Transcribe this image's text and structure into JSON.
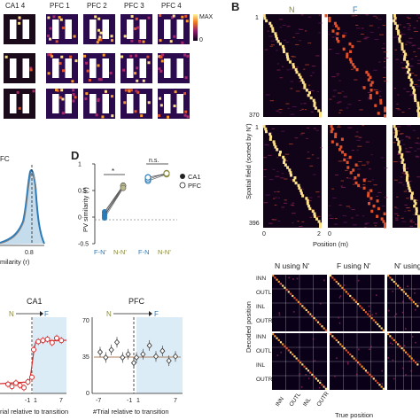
{
  "panel_a": {
    "columns": [
      "CA1 4",
      "PFC 1",
      "PFC 2",
      "PFC 3",
      "PFC 4"
    ],
    "colorbar_max": "MAX",
    "colorbar_min": "0"
  },
  "panel_b": {
    "letter": "B",
    "headers": [
      "N",
      "F"
    ],
    "ylabel": "Spatial field (sorted by N')",
    "top_ticks": [
      "1",
      "370"
    ],
    "bottom_ticks": [
      "1",
      "396"
    ],
    "x_ticks": [
      "0",
      "2",
      "0"
    ],
    "xlabel": "Position (m)",
    "colors": {
      "N": "#8a8a3a",
      "F": "#2a7bb8"
    }
  },
  "panel_c_fragment": {
    "label_fc": "FC",
    "tick_08": "0.8",
    "xlabel_fragment": "milarity (r)"
  },
  "panel_d": {
    "letter": "D",
    "ylabel": "PV similarity (r)",
    "y_ticks": [
      "1",
      "0.5",
      "0",
      "-0.5"
    ],
    "sig1": "*",
    "sig2": "n.s.",
    "x_cats": [
      "F-N'",
      "N-N'",
      "F-N",
      "N-N'"
    ],
    "legend": [
      "CA1",
      "PFC"
    ],
    "chart_data": {
      "type": "scatter",
      "title": "",
      "ylabel": "PV similarity (r)",
      "ylim": [
        -0.5,
        1
      ],
      "categories": [
        "F-N'",
        "N-N'"
      ],
      "series": [
        {
          "name": "CA1",
          "values": [
            0.05,
            0.55
          ]
        },
        {
          "name": "PFC",
          "values": [
            0.72,
            0.8
          ]
        }
      ]
    }
  },
  "panel_e": {
    "title_ca1": "CA1",
    "title_pfc": "PFC",
    "n_label": "N",
    "f_label": "F",
    "ca1_x_ticks": [
      "-1",
      "1",
      "7"
    ],
    "pfc_x_ticks": [
      "-7",
      "-1",
      "1",
      "7"
    ],
    "pfc_y_ticks": [
      "70",
      "35",
      "0"
    ],
    "xlabel_ca1": "rial relative to transition",
    "xlabel_pfc": "#Trial relative to transition",
    "chart_data": [
      {
        "type": "line",
        "title": "CA1",
        "x": [
          -7,
          -6,
          -5,
          -4,
          -3,
          -2,
          -1,
          1,
          2,
          3,
          4,
          5,
          6,
          7
        ],
        "series": [
          {
            "name": "",
            "values": [
              8,
              6,
              9,
              7,
              5,
              10,
              14,
              38,
              45,
              46,
              47,
              44,
              48,
              46
            ]
          }
        ]
      },
      {
        "type": "scatter",
        "title": "PFC",
        "x": [
          -7,
          -6,
          -5,
          -4,
          -3,
          -2,
          -1,
          1,
          2,
          3,
          4,
          5,
          6,
          7
        ],
        "ylim": [
          0,
          70
        ],
        "series": [
          {
            "name": "",
            "values": [
              38,
              33,
              40,
              47,
              33,
              36,
              28,
              33,
              36,
              44,
              34,
              39,
              30,
              34
            ]
          }
        ]
      }
    ]
  },
  "panel_f": {
    "headers": [
      "N using N'",
      "F using N'",
      "N' using"
    ],
    "ylabel": "Decoded position",
    "xlabel": "True position",
    "row_labels": [
      "INN",
      "OUTL",
      "INL",
      "OUTR",
      "INN",
      "OUTL",
      "INL",
      "OUTR"
    ],
    "col_labels": [
      "INN",
      "OUTL",
      "INL",
      "OUTR"
    ]
  }
}
